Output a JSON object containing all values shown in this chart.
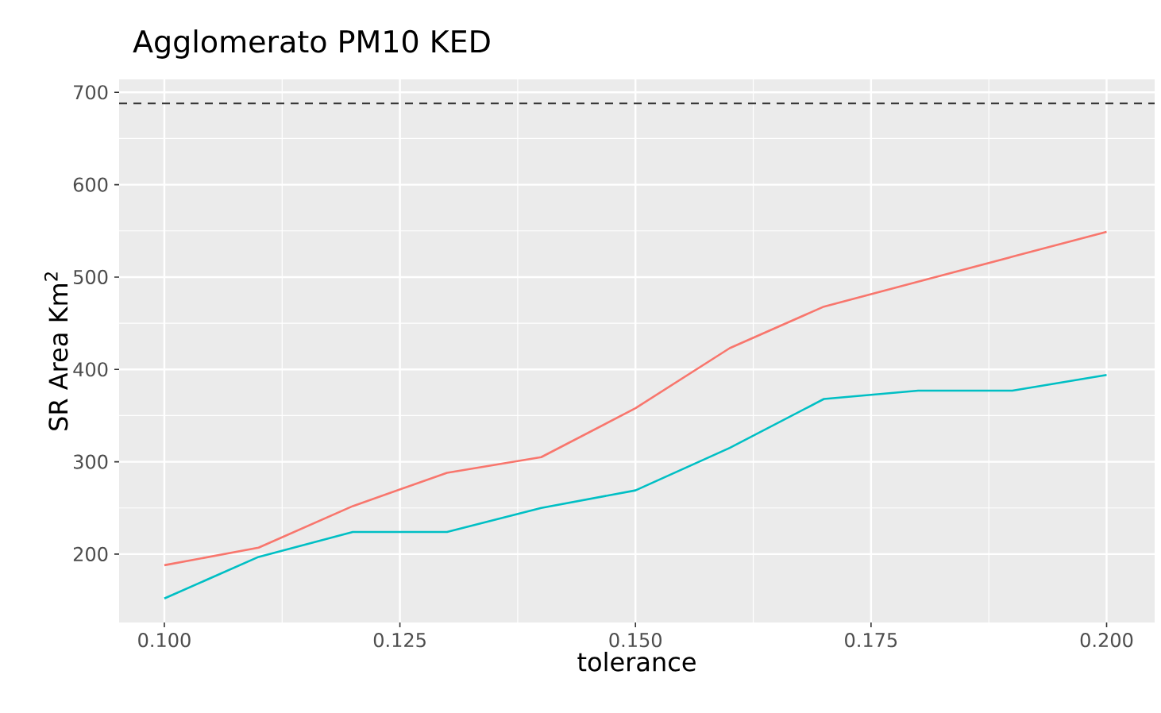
{
  "chart_data": {
    "type": "line",
    "title": "Agglomerato PM10 KED",
    "xlabel": "tolerance",
    "ylabel": "SR Area Km$^{2}$",
    "x": [
      0.1,
      0.11,
      0.12,
      0.13,
      0.14,
      0.15,
      0.16,
      0.17,
      0.18,
      0.19,
      0.2
    ],
    "series": [
      {
        "color": "#f8766d",
        "values": [
          188,
          207,
          252,
          288,
          305,
          358,
          423,
          468,
          495,
          522,
          549
        ]
      },
      {
        "color": "#00bfc4",
        "values": [
          152,
          197,
          224,
          224,
          250,
          269,
          315,
          368,
          377,
          377,
          394
        ]
      }
    ],
    "xlim": [
      0.0952,
      0.2051
    ],
    "ylim": [
      126,
      714
    ],
    "xticks": [
      {
        "value": 0.1,
        "label": "0.100"
      },
      {
        "value": 0.125,
        "label": "0.125"
      },
      {
        "value": 0.15,
        "label": "0.150"
      },
      {
        "value": 0.175,
        "label": "0.175"
      },
      {
        "value": 0.2,
        "label": "0.200"
      }
    ],
    "yticks": [
      200,
      300,
      400,
      500,
      600,
      700
    ],
    "grid": true,
    "marker": "none",
    "line_style": "solid",
    "ref_lines": [
      {
        "axis": "y",
        "value": 688,
        "color": "#333333",
        "line_style": "dashed"
      }
    ]
  }
}
